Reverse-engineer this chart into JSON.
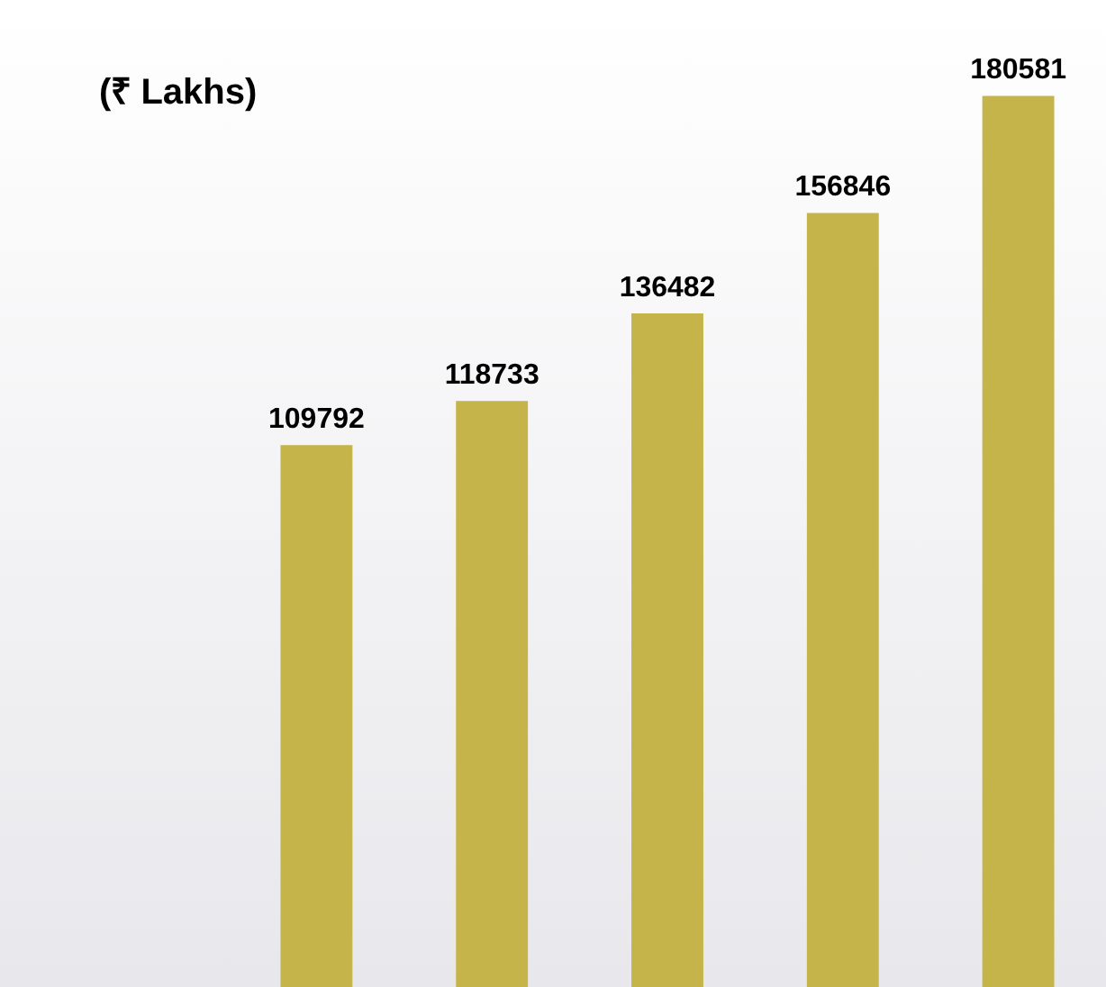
{
  "chart_data": {
    "type": "bar",
    "title": "(₹ Lakhs)",
    "categories": [
      null,
      null,
      null,
      null,
      null
    ],
    "values": [
      109792,
      118733,
      136482,
      156846,
      180581
    ],
    "color": "#c4b44a",
    "data_labels": true,
    "grid": false,
    "legend": false
  }
}
